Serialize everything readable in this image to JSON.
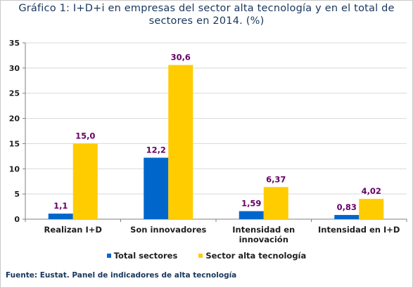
{
  "title_lines": [
    "Gráfico 1: I+D+i en empresas del sector alta tecnología y en el total de",
    "sectores en 2014. (%)"
  ],
  "source": "Fuente: Eustat. Panel de indicadores de alta tecnología",
  "colors": {
    "total": "#0066cc",
    "alta": "#ffcc00",
    "label": "#660066"
  },
  "chart_data": {
    "type": "bar",
    "title": "Gráfico 1: I+D+i en empresas del sector alta tecnología y en el total de sectores en 2014. (%)",
    "categories": [
      [
        "Realizan I+D"
      ],
      [
        "Son innovadores"
      ],
      [
        "Intensidad en",
        "innovación"
      ],
      [
        "Intensidad en I+D"
      ]
    ],
    "series": [
      {
        "name": "Total sectores",
        "values": [
          1.1,
          12.2,
          1.59,
          0.83
        ],
        "labels": [
          "1,1",
          "12,2",
          "1,59",
          "0,83"
        ]
      },
      {
        "name": "Sector alta tecnología",
        "values": [
          15.0,
          30.6,
          6.37,
          4.02
        ],
        "labels": [
          "15,0",
          "30,6",
          "6,37",
          "4,02"
        ]
      }
    ],
    "ylim": [
      0,
      35
    ],
    "yticks": [
      0,
      5,
      10,
      15,
      20,
      25,
      30,
      35
    ],
    "grid": true,
    "legend": "bottom"
  }
}
